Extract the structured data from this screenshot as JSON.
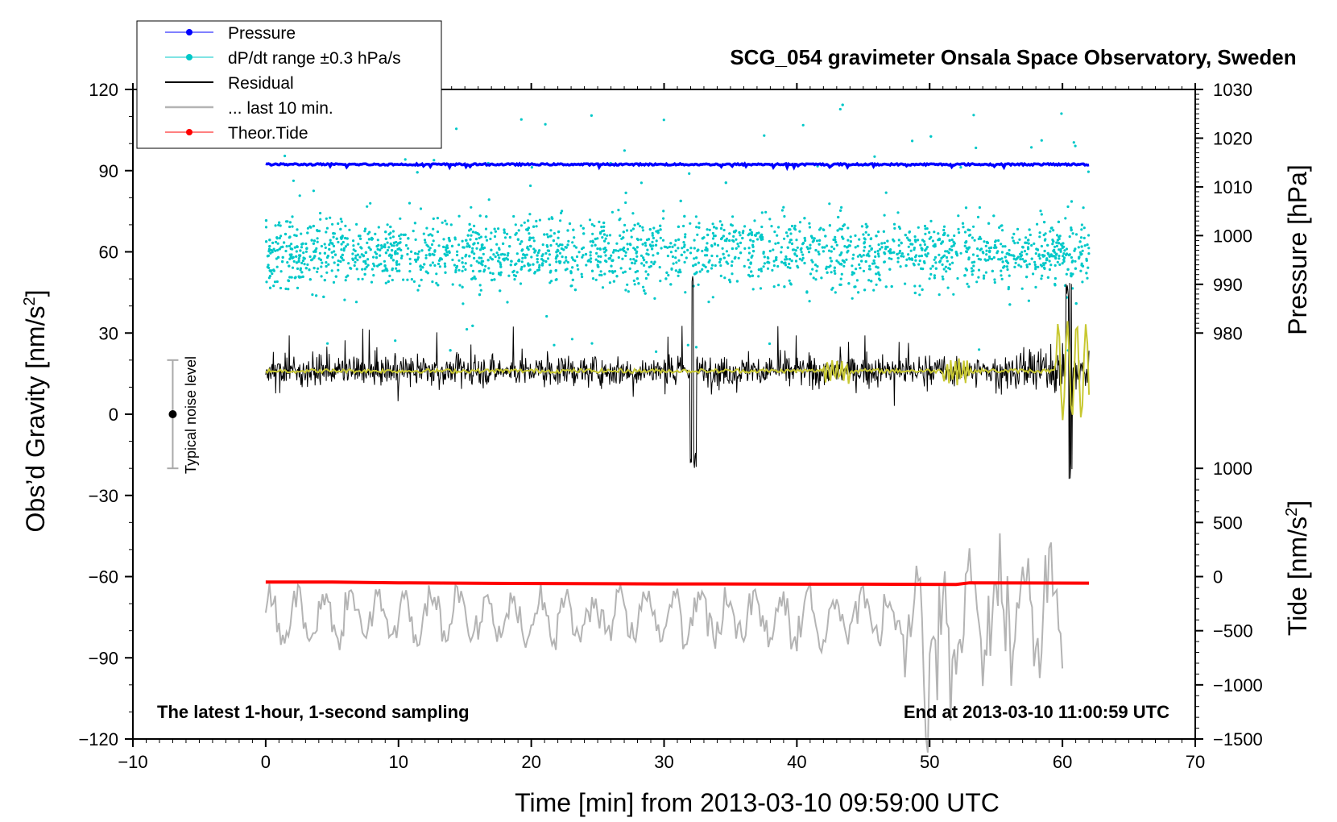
{
  "chart_data": {
    "type": "line",
    "title": "SCG_054 gravimeter Onsala Space Observatory, Sweden",
    "xlabel": "Time [min] from 2013-03-10 09:59:00 UTC",
    "ylabel_left": "Obs’d Gravity [nm/s",
    "ylabel_left_sup": "2",
    "ylabel_left_end": "]",
    "ylabel_right_top": "Pressure [hPa]",
    "ylabel_right_bottom": "Tide [nm/s",
    "ylabel_right_bottom_sup": "2",
    "ylabel_right_bottom_end": "]",
    "xlim": [
      -10,
      70
    ],
    "ylim": [
      -120,
      120
    ],
    "x_ticks": [
      -10,
      0,
      10,
      20,
      30,
      40,
      50,
      60,
      70
    ],
    "x_tick_labels": [
      "−10",
      "0",
      "10",
      "20",
      "30",
      "40",
      "50",
      "60",
      "70"
    ],
    "y_ticks": [
      -120,
      -90,
      -60,
      -30,
      0,
      30,
      60,
      90,
      120
    ],
    "y_tick_labels": [
      "−120",
      "−90",
      "−60",
      "−30",
      "0",
      "30",
      "60",
      "90",
      "120"
    ],
    "pressure_axis": {
      "ticks": [
        980,
        990,
        1000,
        1010,
        1020,
        1030
      ],
      "tick_labels": [
        "980",
        "990",
        "1000",
        "1010",
        "1020",
        "1030"
      ],
      "y_at_980": 30,
      "y_at_1030": 120
    },
    "tide_axis": {
      "ticks": [
        -1500,
        -1000,
        -500,
        0,
        500,
        1000
      ],
      "tick_labels": [
        "−1500",
        "−1000",
        "−500",
        "0",
        "500",
        "1000"
      ],
      "y_at_minus1500": -120,
      "y_at_1000": -20
    },
    "legend": [
      {
        "label": "Pressure",
        "color": "#0000ff",
        "style": "line-dot"
      },
      {
        "label": "dP/dt range ±0.3 hPa/s",
        "color": "#00c8c8",
        "style": "line-dot"
      },
      {
        "label": "Residual",
        "color": "#000000",
        "style": "line"
      },
      {
        "label": "... last 10 min.",
        "color": "#b4b4b4",
        "style": "line"
      },
      {
        "label": "Theor.Tide",
        "color": "#ff0000",
        "style": "line-dot"
      }
    ],
    "series": [
      {
        "name": "Pressure",
        "color": "#0000ff",
        "x_range": [
          0,
          62
        ],
        "left_axis_level": 92.3
      },
      {
        "name": "dP/dt range",
        "color": "#00c8c8",
        "x_range": [
          0,
          62
        ],
        "center": 60,
        "spread": 14,
        "max": 115,
        "min": 22
      },
      {
        "name": "Residual",
        "color": "#000000",
        "x_range": [
          0,
          62
        ],
        "center": 16,
        "spread": 7,
        "spikes": [
          {
            "x": 32.2,
            "min": -20,
            "max": 54
          },
          {
            "x": 60.5,
            "min": -24,
            "max": 49
          }
        ]
      },
      {
        "name": "Residual smoothed",
        "color": "#c8c832",
        "x_range": [
          0,
          62
        ],
        "center": 16
      },
      {
        "name": "... last 10 min.",
        "color": "#b4b4b4",
        "x_range": [
          0,
          60
        ],
        "center": -75,
        "min": -125,
        "max": -44
      },
      {
        "name": "Theor.Tide",
        "color": "#ff0000",
        "x": [
          0,
          5,
          10,
          17,
          30,
          45,
          52,
          53,
          62
        ],
        "left_axis_values": [
          -62,
          -62,
          -62.3,
          -62.5,
          -62.7,
          -62.8,
          -62.9,
          -62.3,
          -62.4
        ]
      }
    ],
    "noise_bar": {
      "label": "Typical noise level",
      "x": -7,
      "center": 0,
      "low": -20,
      "high": 20
    },
    "annotation_left": "The latest 1-hour, 1-second sampling",
    "annotation_right": "End at 2013-03-10 11:00:59 UTC"
  }
}
